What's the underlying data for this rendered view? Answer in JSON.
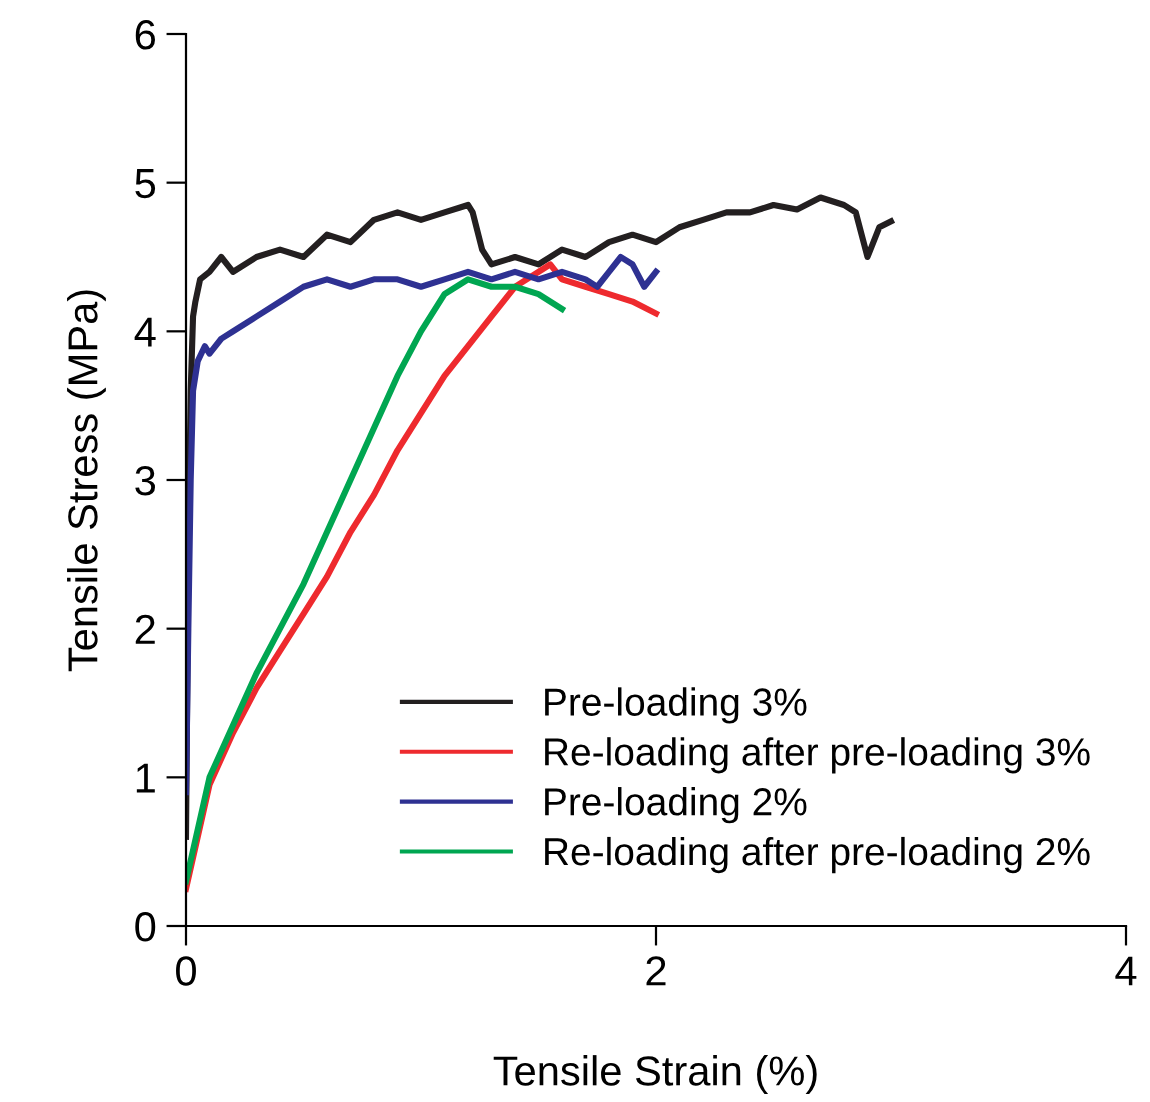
{
  "chart_data": {
    "type": "line",
    "xlabel": "Tensile Strain (%)",
    "ylabel": "Tensile Stress (MPa)",
    "xlim": [
      0,
      4
    ],
    "ylim": [
      0,
      6
    ],
    "xticks": [
      0,
      2,
      4
    ],
    "yticks": [
      0,
      1,
      2,
      3,
      4,
      5,
      6
    ],
    "grid": false,
    "legend": "bottom right",
    "marker": "none",
    "line_style": "solid",
    "series": [
      {
        "name": "Pre-loading 3%",
        "color": "#231f20",
        "x": [
          0,
          0.01,
          0.02,
          0.03,
          0.04,
          0.06,
          0.1,
          0.15,
          0.2,
          0.3,
          0.4,
          0.5,
          0.6,
          0.7,
          0.8,
          0.9,
          1.0,
          1.1,
          1.2,
          1.22,
          1.26,
          1.3,
          1.4,
          1.5,
          1.6,
          1.7,
          1.8,
          1.9,
          2.0,
          2.1,
          2.2,
          2.3,
          2.4,
          2.5,
          2.6,
          2.7,
          2.8,
          2.85,
          2.9,
          2.95,
          3.0
        ],
        "values": [
          0.6,
          2.5,
          3.6,
          4.1,
          4.2,
          4.35,
          4.4,
          4.5,
          4.4,
          4.5,
          4.55,
          4.5,
          4.65,
          4.6,
          4.75,
          4.8,
          4.75,
          4.8,
          4.85,
          4.8,
          4.55,
          4.45,
          4.5,
          4.45,
          4.55,
          4.5,
          4.6,
          4.65,
          4.6,
          4.7,
          4.75,
          4.8,
          4.8,
          4.85,
          4.82,
          4.9,
          4.85,
          4.8,
          4.5,
          4.7,
          4.74
        ]
      },
      {
        "name": "Re-loading after pre-loading 3%",
        "color": "#ee2a2e",
        "x": [
          0,
          0.05,
          0.1,
          0.2,
          0.3,
          0.4,
          0.5,
          0.6,
          0.7,
          0.8,
          0.9,
          1.0,
          1.1,
          1.2,
          1.3,
          1.4,
          1.5,
          1.55,
          1.6,
          1.7,
          1.8,
          1.9,
          2.0
        ],
        "values": [
          0.25,
          0.6,
          0.95,
          1.3,
          1.6,
          1.85,
          2.1,
          2.35,
          2.65,
          2.9,
          3.2,
          3.45,
          3.7,
          3.9,
          4.1,
          4.3,
          4.4,
          4.45,
          4.35,
          4.3,
          4.25,
          4.2,
          4.12
        ]
      },
      {
        "name": "Pre-loading 2%",
        "color": "#2e3192",
        "x": [
          0,
          0.01,
          0.02,
          0.03,
          0.05,
          0.08,
          0.1,
          0.15,
          0.2,
          0.3,
          0.4,
          0.5,
          0.6,
          0.7,
          0.8,
          0.9,
          1.0,
          1.1,
          1.2,
          1.3,
          1.4,
          1.5,
          1.6,
          1.7,
          1.75,
          1.8,
          1.85,
          1.9,
          1.95,
          2.0
        ],
        "values": [
          0.9,
          2.0,
          3.0,
          3.6,
          3.8,
          3.9,
          3.85,
          3.95,
          4.0,
          4.1,
          4.2,
          4.3,
          4.35,
          4.3,
          4.35,
          4.35,
          4.3,
          4.35,
          4.4,
          4.35,
          4.4,
          4.35,
          4.4,
          4.35,
          4.3,
          4.4,
          4.5,
          4.45,
          4.3,
          4.4
        ]
      },
      {
        "name": "Re-loading after pre-loading 2%",
        "color": "#00a651",
        "x": [
          0,
          0.05,
          0.1,
          0.2,
          0.3,
          0.4,
          0.5,
          0.6,
          0.7,
          0.8,
          0.9,
          1.0,
          1.1,
          1.2,
          1.3,
          1.4,
          1.5,
          1.6
        ],
        "values": [
          0.3,
          0.65,
          1.0,
          1.35,
          1.7,
          2.0,
          2.3,
          2.65,
          3.0,
          3.35,
          3.7,
          4.0,
          4.25,
          4.35,
          4.3,
          4.3,
          4.25,
          4.15
        ]
      }
    ]
  }
}
